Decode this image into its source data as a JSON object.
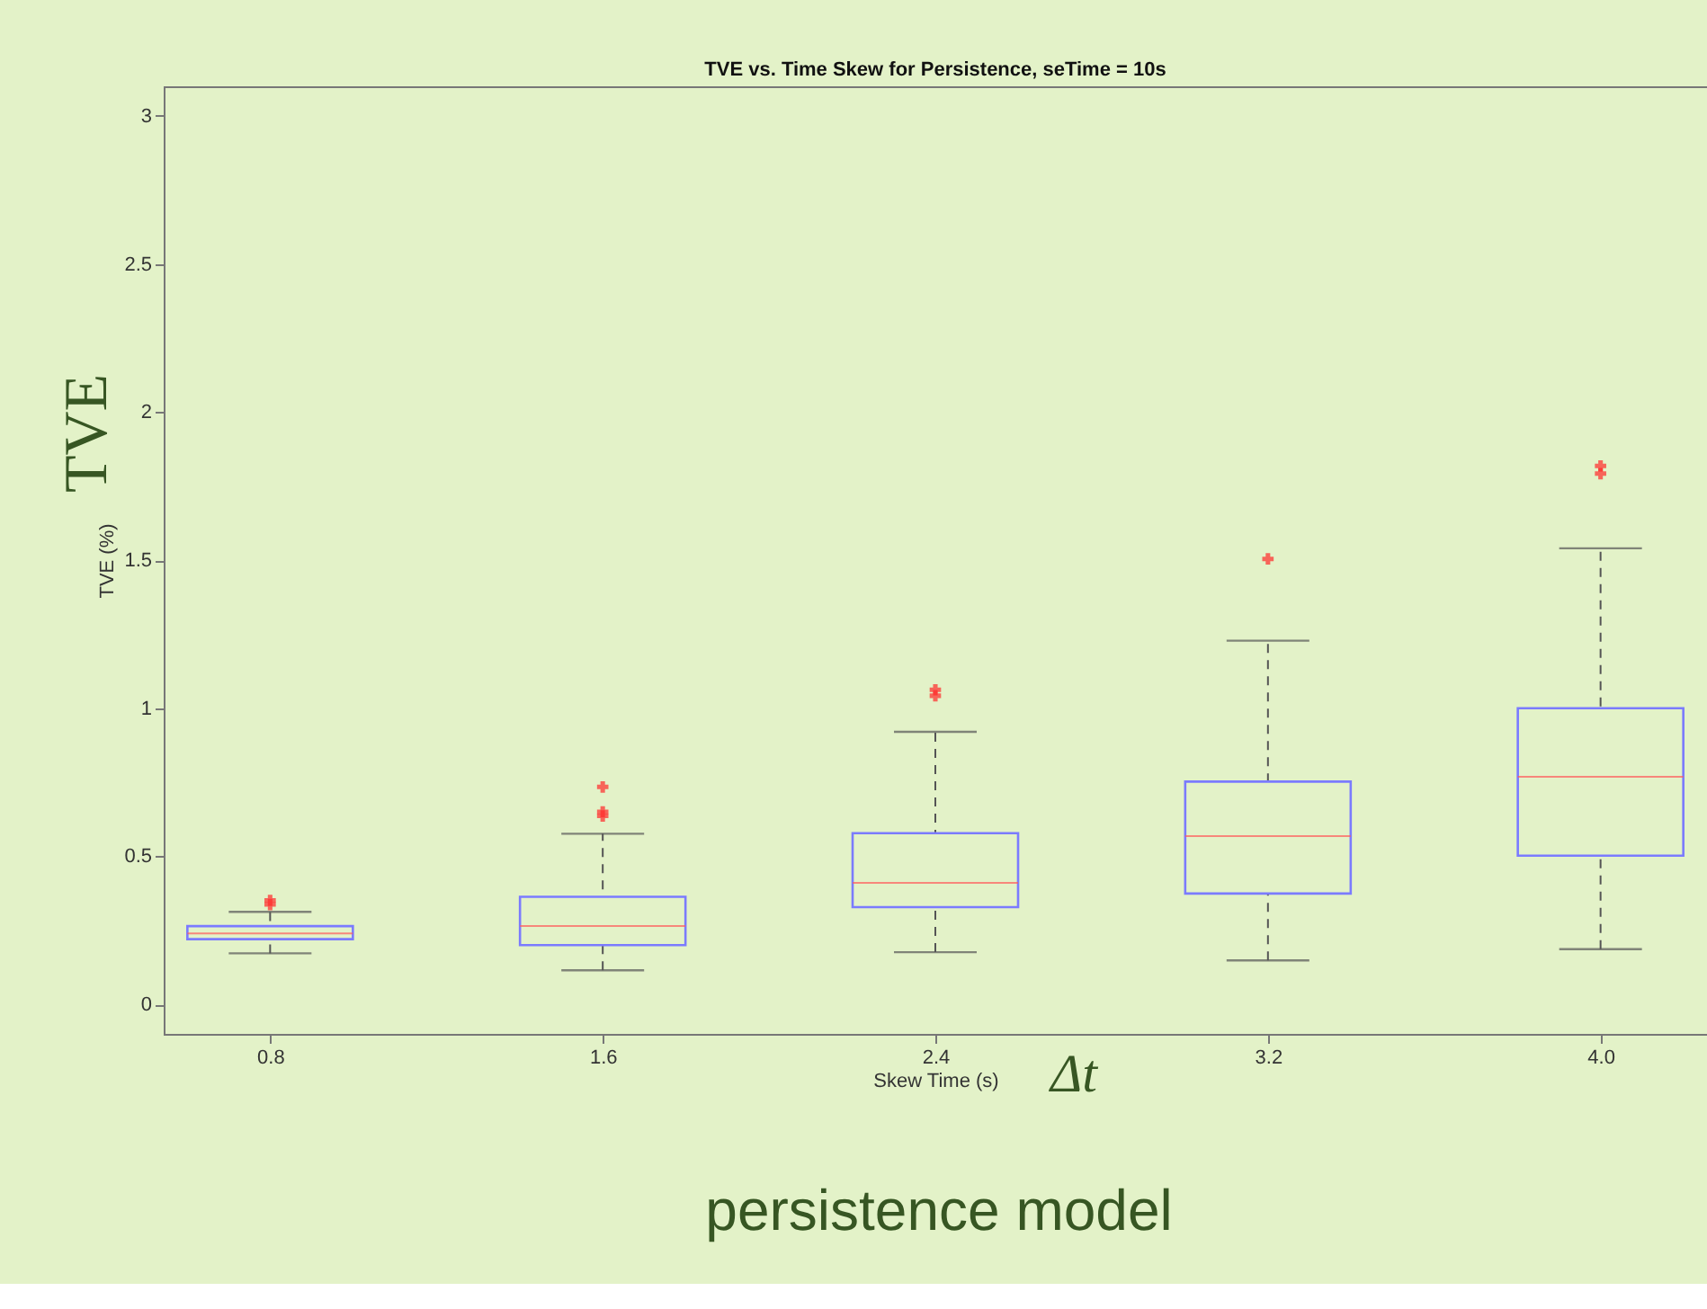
{
  "chart_data": {
    "type": "box",
    "title": "TVE vs. Time Skew for Persistence, seTime = 10s",
    "xlabel": "Skew Time (s)",
    "ylabel": "TVE (%)",
    "categories": [
      "0.8",
      "1.6",
      "2.4",
      "3.2",
      "4.0"
    ],
    "color": "#7b7bff",
    "boxes": [
      {
        "low": 0.172,
        "q1": 0.22,
        "median": 0.239,
        "q3": 0.264,
        "high": 0.312,
        "outliers": [
          0.337,
          0.351
        ]
      },
      {
        "low": 0.115,
        "q1": 0.2,
        "median": 0.264,
        "q3": 0.363,
        "high": 0.576,
        "outliers": [
          0.636,
          0.65,
          0.734
        ]
      },
      {
        "low": 0.176,
        "q1": 0.328,
        "median": 0.41,
        "q3": 0.578,
        "high": 0.92,
        "outliers": [
          1.042,
          1.062
        ]
      },
      {
        "low": 0.148,
        "q1": 0.374,
        "median": 0.568,
        "q3": 0.752,
        "high": 1.228,
        "outliers": [
          1.504
        ]
      },
      {
        "low": 0.186,
        "q1": 0.502,
        "median": 0.768,
        "q3": 1.0,
        "high": 1.54,
        "outliers": [
          1.792,
          1.818
        ]
      }
    ],
    "marker": "cross",
    "ylim": [
      -0.1,
      3.1
    ],
    "yticks": [
      0,
      0.5,
      1,
      1.5,
      2,
      2.5,
      3
    ],
    "grid": false,
    "annotations": [
      "TVE",
      "Δt",
      "persistence model"
    ]
  }
}
